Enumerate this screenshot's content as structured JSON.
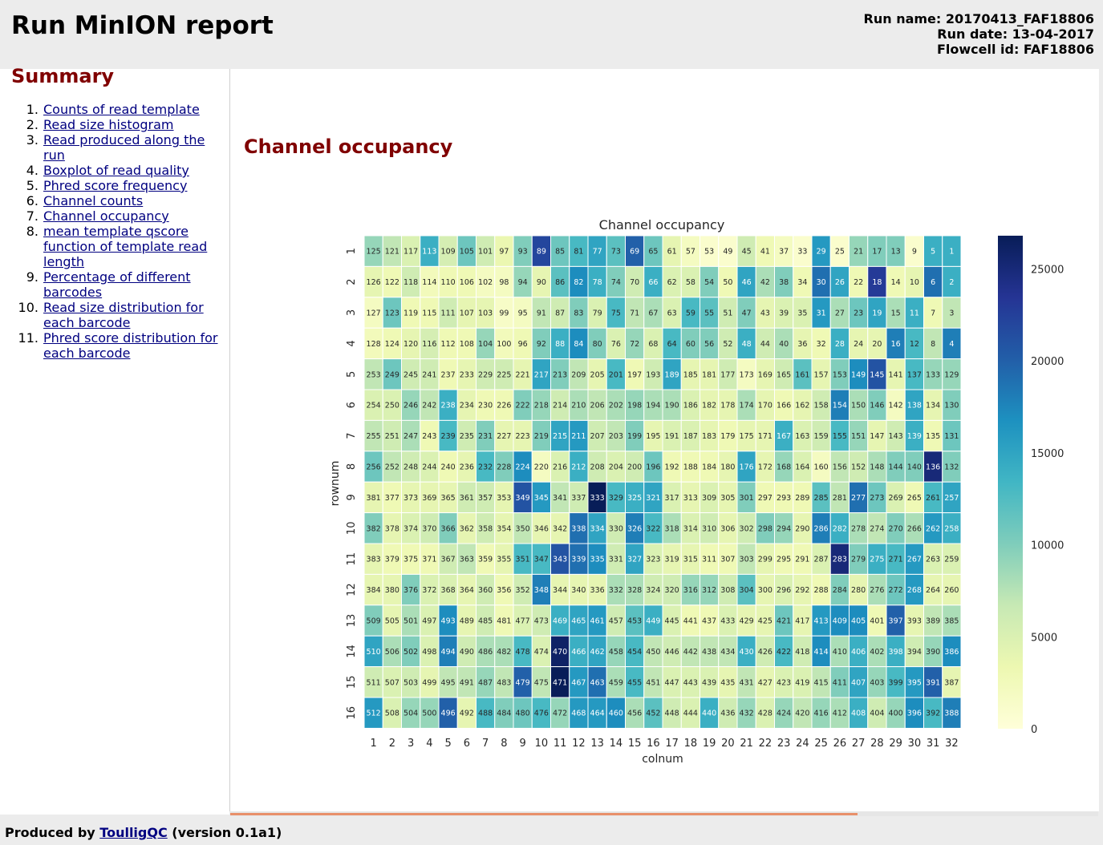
{
  "header": {
    "title": "Run MinION report",
    "run_name": "Run name: 20170413_FAF18806",
    "run_date": "Run date: 13-04-2017",
    "flowcell_id": "Flowcell id: FAF18806"
  },
  "sidebar": {
    "title": "Summary",
    "items": [
      {
        "num": "1.",
        "label": "Counts of read template"
      },
      {
        "num": "2.",
        "label": "Read size histogram"
      },
      {
        "num": "3.",
        "label": "Read produced along the run"
      },
      {
        "num": "4.",
        "label": "Boxplot of read quality"
      },
      {
        "num": "5.",
        "label": "Phred score frequency"
      },
      {
        "num": "6.",
        "label": "Channel counts"
      },
      {
        "num": "7.",
        "label": "Channel occupancy"
      },
      {
        "num": "8.",
        "label": "mean template qscore function of template read length"
      },
      {
        "num": "9.",
        "label": "Percentage of different barcodes"
      },
      {
        "num": "10.",
        "label": "Read size distribution for each barcode"
      },
      {
        "num": "11.",
        "label": "Phred score distribution for each barcode"
      }
    ]
  },
  "main": {
    "section_title": "Channel occupancy"
  },
  "footer": {
    "prefix": "Produced by",
    "link": "ToulligQC",
    "suffix": "(version 0.1a1)"
  },
  "colors": {
    "section_title": "#800000",
    "link": "#000080",
    "scrollbar_thumb": "#e8906a"
  },
  "chart_data": {
    "type": "heatmap",
    "title": "Channel occupancy",
    "xlabel": "colnum",
    "ylabel": "rownum",
    "x_ticks": [
      "1",
      "2",
      "3",
      "4",
      "5",
      "6",
      "7",
      "8",
      "9",
      "10",
      "11",
      "12",
      "13",
      "14",
      "15",
      "16",
      "17",
      "18",
      "19",
      "20",
      "21",
      "22",
      "23",
      "24",
      "25",
      "26",
      "27",
      "28",
      "29",
      "30",
      "31",
      "32"
    ],
    "y_ticks": [
      "1",
      "2",
      "3",
      "4",
      "5",
      "6",
      "7",
      "8",
      "9",
      "10",
      "11",
      "12",
      "13",
      "14",
      "15",
      "16"
    ],
    "colormap": "YlGnBu",
    "colorbar": {
      "min": 0,
      "max": 26800,
      "ticks": [
        0,
        5000,
        10000,
        15000,
        20000,
        25000
      ]
    },
    "cell_labels": [
      [
        125,
        121,
        117,
        113,
        109,
        105,
        101,
        97,
        93,
        89,
        85,
        81,
        77,
        73,
        69,
        65,
        61,
        57,
        53,
        49,
        45,
        41,
        37,
        33,
        29,
        25,
        21,
        17,
        13,
        9,
        5,
        1
      ],
      [
        126,
        122,
        118,
        114,
        110,
        106,
        102,
        98,
        94,
        90,
        86,
        82,
        78,
        74,
        70,
        66,
        62,
        58,
        54,
        50,
        46,
        42,
        38,
        34,
        30,
        26,
        22,
        18,
        14,
        10,
        6,
        2
      ],
      [
        127,
        123,
        119,
        115,
        111,
        107,
        103,
        99,
        95,
        91,
        87,
        83,
        79,
        75,
        71,
        67,
        63,
        59,
        55,
        51,
        47,
        43,
        39,
        35,
        31,
        27,
        23,
        19,
        15,
        11,
        7,
        3
      ],
      [
        128,
        124,
        120,
        116,
        112,
        108,
        104,
        100,
        96,
        92,
        88,
        84,
        80,
        76,
        72,
        68,
        64,
        60,
        56,
        52,
        48,
        44,
        40,
        36,
        32,
        28,
        24,
        20,
        16,
        12,
        8,
        4
      ],
      [
        253,
        249,
        245,
        241,
        237,
        233,
        229,
        225,
        221,
        217,
        213,
        209,
        205,
        201,
        197,
        193,
        189,
        185,
        181,
        177,
        173,
        169,
        165,
        161,
        157,
        153,
        149,
        145,
        141,
        137,
        133,
        129
      ],
      [
        254,
        250,
        246,
        242,
        238,
        234,
        230,
        226,
        222,
        218,
        214,
        210,
        206,
        202,
        198,
        194,
        190,
        186,
        182,
        178,
        174,
        170,
        166,
        162,
        158,
        154,
        150,
        146,
        142,
        138,
        134,
        130
      ],
      [
        255,
        251,
        247,
        243,
        239,
        235,
        231,
        227,
        223,
        219,
        215,
        211,
        207,
        203,
        199,
        195,
        191,
        187,
        183,
        179,
        175,
        171,
        167,
        163,
        159,
        155,
        151,
        147,
        143,
        139,
        135,
        131
      ],
      [
        256,
        252,
        248,
        244,
        240,
        236,
        232,
        228,
        224,
        220,
        216,
        212,
        208,
        204,
        200,
        196,
        192,
        188,
        184,
        180,
        176,
        172,
        168,
        164,
        160,
        156,
        152,
        148,
        144,
        140,
        136,
        132
      ],
      [
        381,
        377,
        373,
        369,
        365,
        361,
        357,
        353,
        349,
        345,
        341,
        337,
        333,
        329,
        325,
        321,
        317,
        313,
        309,
        305,
        301,
        297,
        293,
        289,
        285,
        281,
        277,
        273,
        269,
        265,
        261,
        257
      ],
      [
        382,
        378,
        374,
        370,
        366,
        362,
        358,
        354,
        350,
        346,
        342,
        338,
        334,
        330,
        326,
        322,
        318,
        314,
        310,
        306,
        302,
        298,
        294,
        290,
        286,
        282,
        278,
        274,
        270,
        266,
        262,
        258
      ],
      [
        383,
        379,
        375,
        371,
        367,
        363,
        359,
        355,
        351,
        347,
        343,
        339,
        335,
        331,
        327,
        323,
        319,
        315,
        311,
        307,
        303,
        299,
        295,
        291,
        287,
        283,
        279,
        275,
        271,
        267,
        263,
        259
      ],
      [
        384,
        380,
        376,
        372,
        368,
        364,
        360,
        356,
        352,
        348,
        344,
        340,
        336,
        332,
        328,
        324,
        320,
        316,
        312,
        308,
        304,
        300,
        296,
        292,
        288,
        284,
        280,
        276,
        272,
        268,
        264,
        260
      ],
      [
        509,
        505,
        501,
        497,
        493,
        489,
        485,
        481,
        477,
        473,
        469,
        465,
        461,
        457,
        453,
        449,
        445,
        441,
        437,
        433,
        429,
        425,
        421,
        417,
        413,
        409,
        405,
        401,
        397,
        393,
        389,
        385
      ],
      [
        510,
        506,
        502,
        498,
        494,
        490,
        486,
        482,
        478,
        474,
        470,
        466,
        462,
        458,
        454,
        450,
        446,
        442,
        438,
        434,
        430,
        426,
        422,
        418,
        414,
        410,
        406,
        402,
        398,
        394,
        390,
        386
      ],
      [
        511,
        507,
        503,
        499,
        495,
        491,
        487,
        483,
        479,
        475,
        471,
        467,
        463,
        459,
        455,
        451,
        447,
        443,
        439,
        435,
        431,
        427,
        423,
        419,
        415,
        411,
        407,
        403,
        399,
        395,
        391,
        387
      ],
      [
        512,
        508,
        504,
        500,
        496,
        492,
        488,
        484,
        480,
        476,
        472,
        468,
        464,
        460,
        456,
        452,
        448,
        444,
        440,
        436,
        432,
        428,
        424,
        420,
        416,
        412,
        408,
        404,
        400,
        396,
        392,
        388
      ]
    ],
    "values": [
      [
        9000,
        7000,
        5000,
        14000,
        5500,
        11000,
        6000,
        3500,
        10000,
        22000,
        11000,
        13000,
        15000,
        12000,
        20000,
        11000,
        4000,
        2000,
        1000,
        1000,
        6000,
        3000,
        2000,
        1000,
        16000,
        1000,
        9000,
        10000,
        10000,
        1000,
        14000,
        14000
      ],
      [
        4000,
        3000,
        6000,
        2500,
        3000,
        3000,
        2000,
        2000,
        9000,
        4000,
        12000,
        17000,
        14000,
        10000,
        6000,
        14000,
        5000,
        5000,
        10000,
        3000,
        15000,
        8000,
        10000,
        3000,
        19000,
        15000,
        3000,
        23000,
        3000,
        4000,
        19000,
        14000
      ],
      [
        2000,
        11000,
        3000,
        3000,
        6000,
        4000,
        4000,
        1500,
        2000,
        7000,
        6000,
        10000,
        5000,
        13000,
        7000,
        8000,
        5000,
        13000,
        12000,
        6000,
        10000,
        4000,
        5000,
        5000,
        16000,
        8000,
        11000,
        15000,
        8000,
        14000,
        3000,
        7000
      ],
      [
        2500,
        3000,
        4000,
        5500,
        3000,
        3000,
        9000,
        2500,
        3000,
        10000,
        14000,
        17000,
        10000,
        5000,
        9000,
        5000,
        13000,
        10000,
        10000,
        6000,
        14000,
        6000,
        8000,
        4000,
        3000,
        14000,
        4000,
        4000,
        18000,
        13000,
        7000,
        18000
      ],
      [
        7000,
        11000,
        6000,
        6000,
        3000,
        4000,
        6000,
        6000,
        4000,
        15000,
        10000,
        7000,
        4000,
        13000,
        3000,
        6000,
        15000,
        4000,
        4000,
        6000,
        2000,
        4000,
        6000,
        12000,
        4000,
        10000,
        17000,
        21000,
        4000,
        13000,
        9000,
        9000
      ],
      [
        5000,
        5000,
        9000,
        7000,
        14000,
        4000,
        3000,
        3000,
        10000,
        9000,
        6000,
        8000,
        7000,
        8000,
        9000,
        8000,
        8000,
        5000,
        4000,
        4000,
        8000,
        4000,
        3000,
        4000,
        6000,
        18000,
        8000,
        10000,
        2000,
        15000,
        4000,
        10000
      ],
      [
        7000,
        6000,
        8000,
        3000,
        13000,
        6000,
        10000,
        4000,
        4000,
        10000,
        15000,
        16000,
        6000,
        7000,
        10000,
        4000,
        5000,
        5000,
        4000,
        3000,
        4000,
        4000,
        14000,
        5000,
        6000,
        13000,
        9000,
        4000,
        6000,
        14000,
        3000,
        11000
      ],
      [
        11000,
        7000,
        6000,
        5000,
        3000,
        4000,
        13000,
        10000,
        17000,
        2000,
        5000,
        14000,
        6000,
        5000,
        6000,
        11000,
        3000,
        3000,
        3000,
        4000,
        15000,
        4000,
        9000,
        5000,
        2000,
        7000,
        6000,
        8000,
        10000,
        10000,
        25000,
        10000
      ],
      [
        4000,
        3000,
        4000,
        4000,
        4000,
        6000,
        6000,
        4000,
        21000,
        16000,
        7000,
        6000,
        27000,
        13000,
        14000,
        15000,
        5000,
        4000,
        5000,
        4000,
        10000,
        3000,
        3000,
        3000,
        12000,
        7000,
        19000,
        11000,
        5000,
        3000,
        13000,
        15000
      ],
      [
        10000,
        4000,
        5000,
        6000,
        10000,
        4000,
        6000,
        4000,
        7000,
        4000,
        4000,
        19000,
        15000,
        6000,
        18000,
        13000,
        8000,
        5000,
        6000,
        4000,
        6000,
        10000,
        9000,
        4000,
        18000,
        14000,
        8000,
        7000,
        10000,
        8000,
        16000,
        14000
      ],
      [
        4000,
        3000,
        3000,
        3000,
        6000,
        7000,
        3000,
        4000,
        13000,
        13000,
        21000,
        19000,
        17000,
        6000,
        15000,
        5000,
        4000,
        4000,
        3000,
        3000,
        7000,
        4000,
        3000,
        3000,
        5000,
        25000,
        10000,
        14000,
        13000,
        16000,
        5000,
        5000
      ],
      [
        4000,
        4000,
        10000,
        5000,
        5000,
        4000,
        6000,
        3000,
        6000,
        18000,
        4000,
        4000,
        4000,
        8000,
        8000,
        6000,
        6000,
        9000,
        9000,
        6000,
        12000,
        4000,
        5000,
        4000,
        3000,
        10000,
        4000,
        8000,
        11000,
        16000,
        4000,
        4000
      ],
      [
        10000,
        4000,
        8000,
        5000,
        17000,
        4000,
        6000,
        3000,
        5000,
        6000,
        14000,
        15000,
        16000,
        6000,
        12000,
        14000,
        5000,
        3000,
        3000,
        5000,
        4000,
        4000,
        11000,
        4000,
        16000,
        17000,
        17000,
        3000,
        20000,
        4000,
        7000,
        8000
      ],
      [
        15000,
        8000,
        10000,
        5000,
        18000,
        6000,
        8000,
        8000,
        13000,
        5000,
        26000,
        14000,
        15000,
        9000,
        13000,
        7000,
        6000,
        7000,
        7000,
        7000,
        14000,
        6000,
        13000,
        6000,
        17000,
        8000,
        14000,
        8000,
        14000,
        6000,
        9000,
        17000
      ],
      [
        6000,
        5000,
        6000,
        4000,
        7000,
        7000,
        9000,
        7000,
        20000,
        7000,
        27000,
        16000,
        19000,
        8000,
        13000,
        7000,
        5000,
        5000,
        5000,
        4000,
        7000,
        4000,
        5000,
        5000,
        7000,
        10000,
        15000,
        9000,
        13000,
        16000,
        20000,
        4000
      ],
      [
        16000,
        5000,
        9000,
        9000,
        20000,
        4000,
        13000,
        10000,
        11000,
        13000,
        9000,
        16000,
        16000,
        17000,
        8000,
        12000,
        6000,
        5000,
        14000,
        6000,
        9000,
        5000,
        9000,
        7000,
        9000,
        8000,
        14000,
        6000,
        9000,
        17000,
        13000,
        18000
      ]
    ]
  }
}
